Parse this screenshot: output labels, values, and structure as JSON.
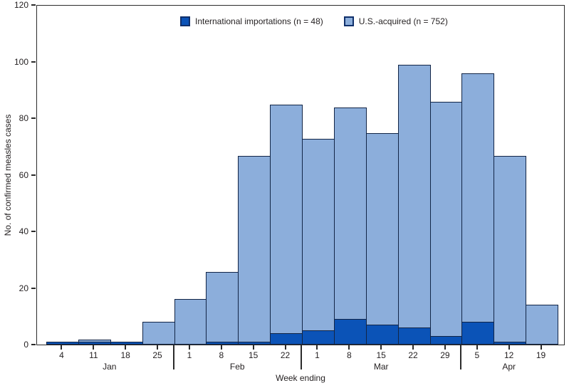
{
  "figure": {
    "y_axis_label": "No. of confirmed measles cases",
    "x_axis_label": "Week ending"
  },
  "legend": {
    "items": [
      {
        "label": "International importations (n = 48)",
        "color": "#0B53B7"
      },
      {
        "label": "U.S.-acquired (n = 752)",
        "color": "#8CAEDB"
      }
    ]
  },
  "colors": {
    "international": "#0B53B7",
    "us_acquired": "#8CAEDB",
    "bar_border": "#122546",
    "axis": "#2b2b2b",
    "text": "#231f20"
  },
  "chart_data": {
    "type": "bar",
    "stacked": true,
    "title": "",
    "xlabel": "Week ending",
    "ylabel": "No. of confirmed measles cases",
    "ylim": [
      0,
      120
    ],
    "yticks": [
      0,
      20,
      40,
      60,
      80,
      100,
      120
    ],
    "grid": false,
    "legend_position": "top-center",
    "categories": [
      "4",
      "11",
      "18",
      "25",
      "1",
      "8",
      "15",
      "22",
      "1",
      "8",
      "15",
      "22",
      "29",
      "5",
      "12",
      "19"
    ],
    "month_groups": [
      {
        "label": "Jan",
        "span": 4
      },
      {
        "label": "Feb",
        "span": 4
      },
      {
        "label": "Mar",
        "span": 5
      },
      {
        "label": "Apr",
        "span": 3
      }
    ],
    "series": [
      {
        "name": "International importations (n = 48)",
        "color": "#0B53B7",
        "values": [
          1,
          1,
          1,
          0,
          0,
          1,
          1,
          4,
          5,
          9,
          7,
          6,
          3,
          8,
          1,
          0
        ]
      },
      {
        "name": "U.S.-acquired (n = 752)",
        "color": "#8CAEDB",
        "values": [
          0,
          1,
          0,
          8,
          16,
          25,
          66,
          81,
          68,
          75,
          68,
          93,
          83,
          88,
          66,
          14
        ]
      }
    ],
    "totals": [
      1,
      2,
      1,
      8,
      16,
      26,
      67,
      85,
      73,
      84,
      75,
      99,
      86,
      96,
      67,
      14
    ]
  }
}
